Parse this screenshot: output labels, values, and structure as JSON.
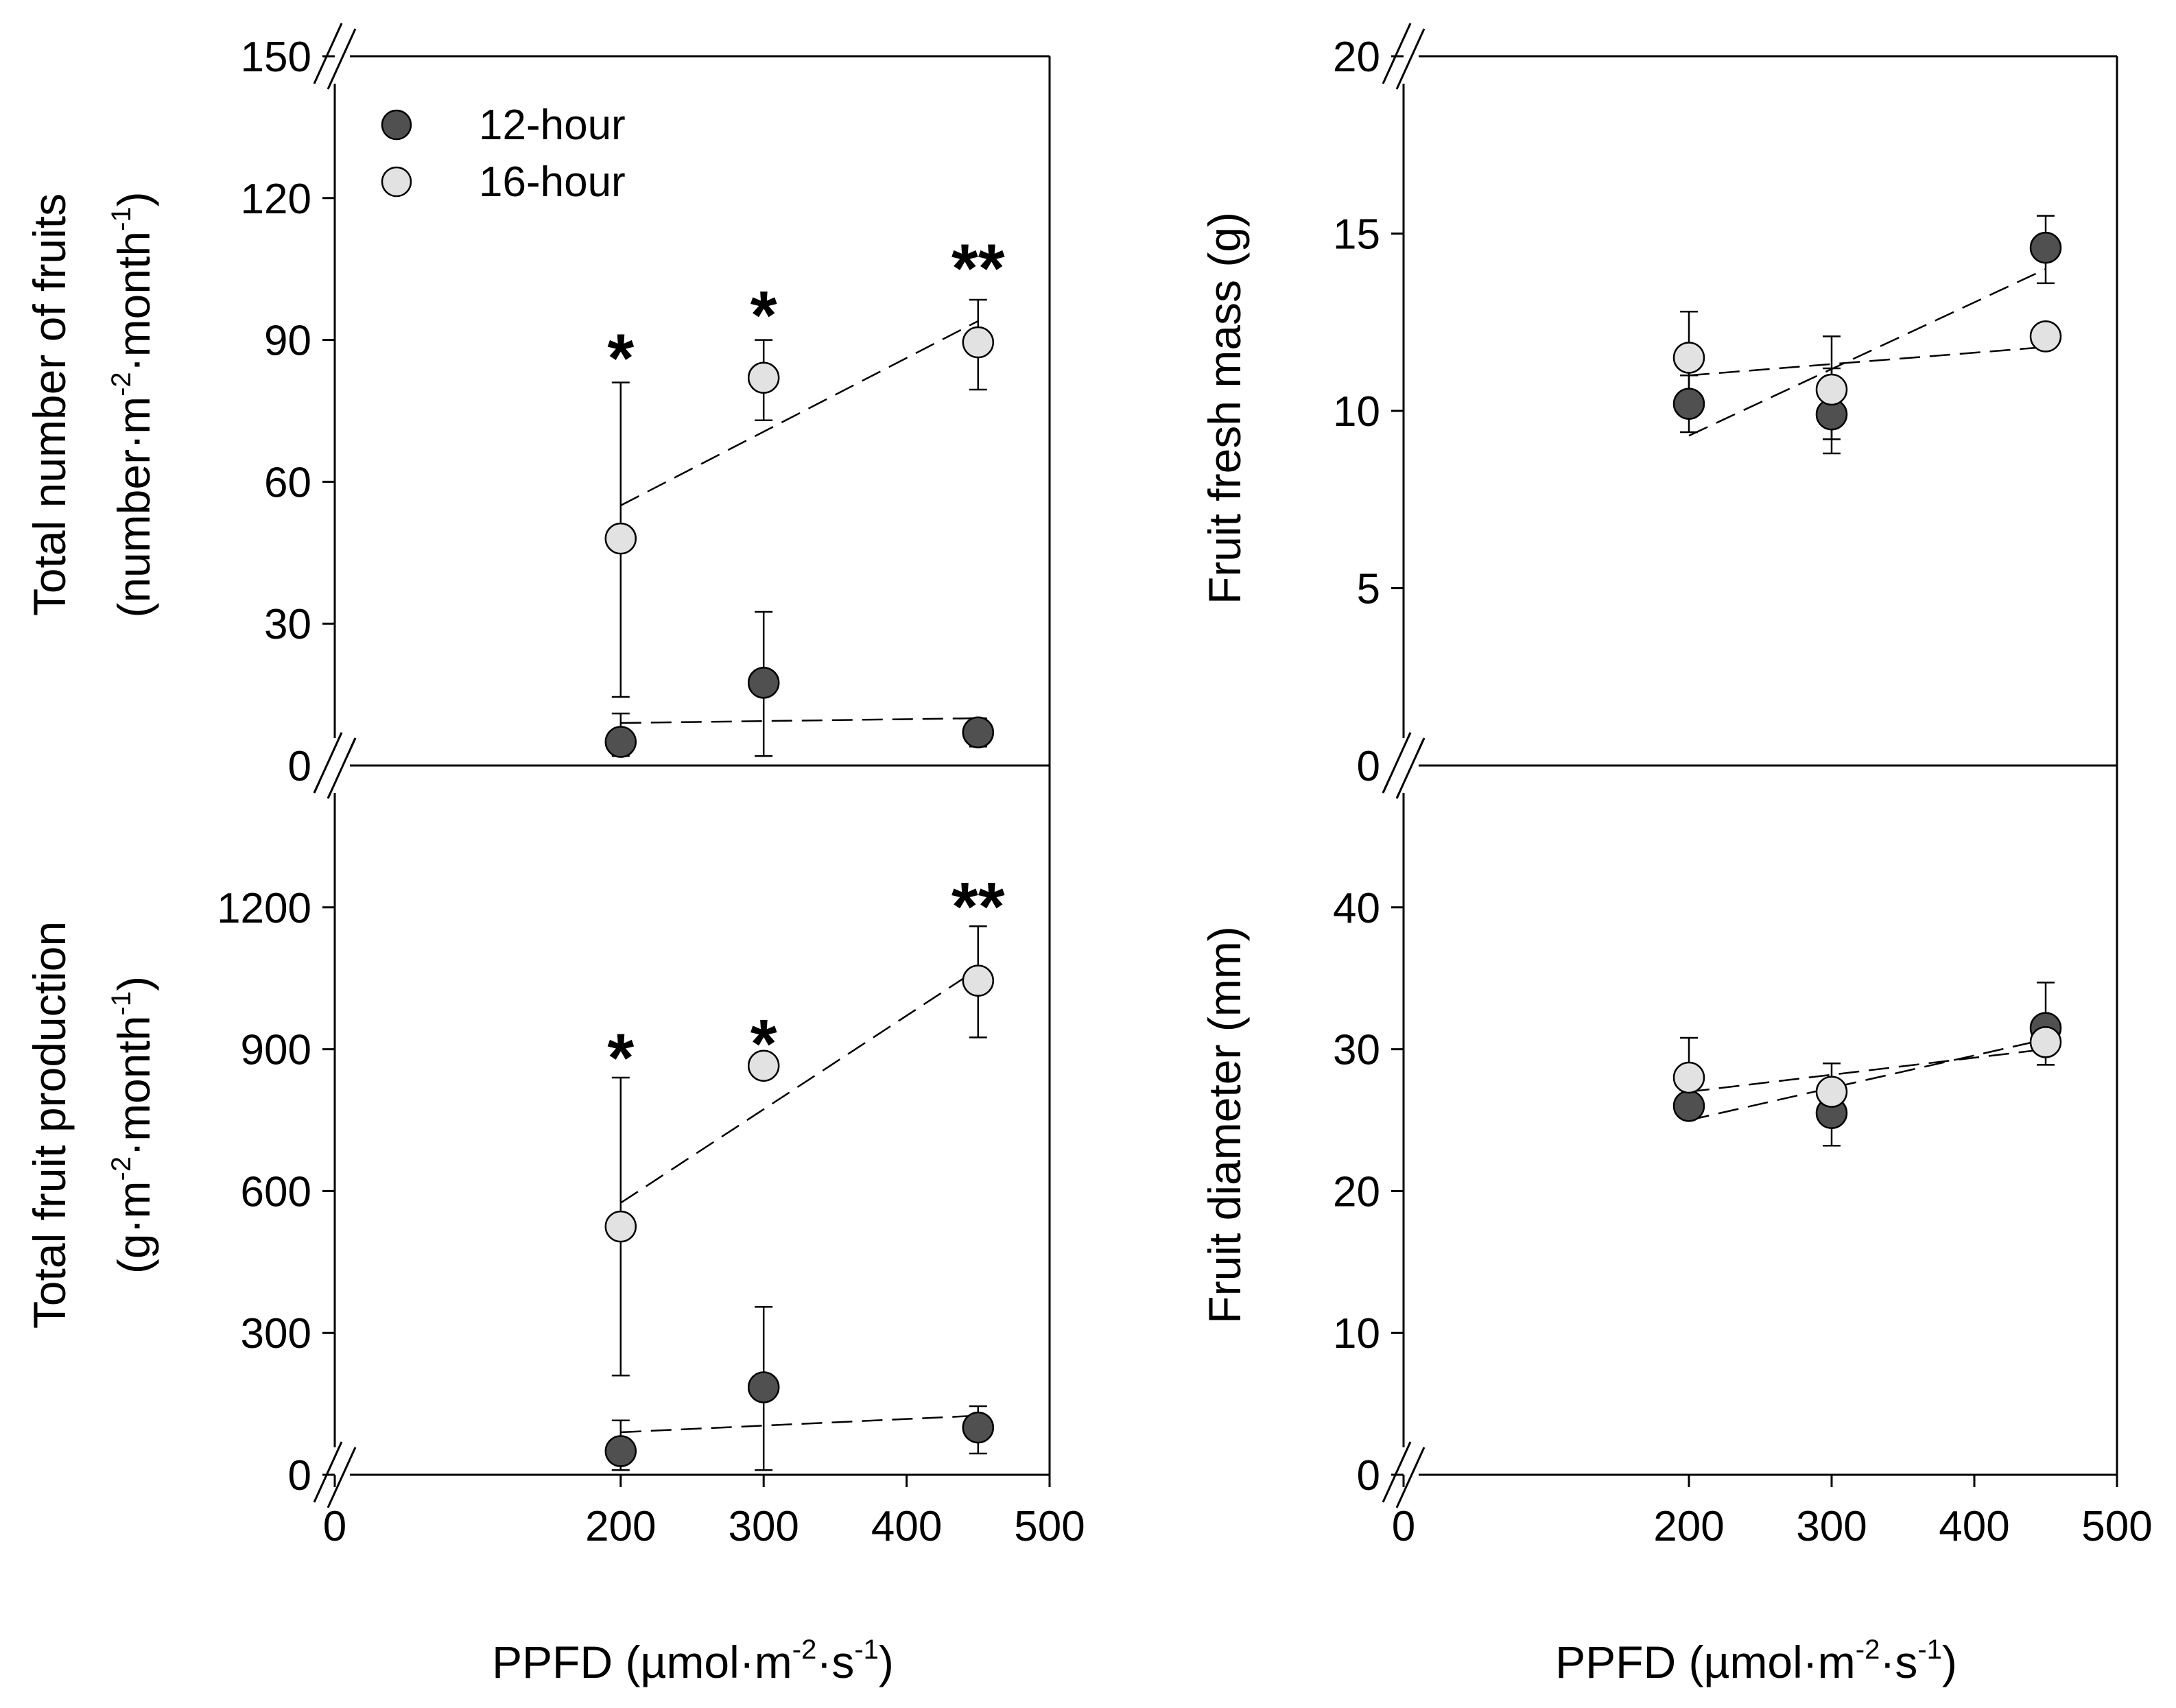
{
  "figure": {
    "x_title_left": {
      "main": "PPFD (µmol·m",
      "exp1": "-2",
      "mid": "·s",
      "exp2": "-1",
      "end": ")"
    },
    "x_title_right": {
      "main": "PPFD (µmol·m",
      "exp1": "-2",
      "mid": "·s",
      "exp2": "-1",
      "end": ")"
    },
    "x_ticks": [
      "0",
      "200",
      "300",
      "400",
      "500"
    ],
    "legend": [
      {
        "label": "12-hour",
        "color": "#505050"
      },
      {
        "label": "16-hour",
        "color": "#e2e2e2"
      }
    ]
  },
  "colors": {
    "series_12h": "#505050",
    "series_16h": "#e2e2e2",
    "marker_edge": "#000000",
    "fit_line": "#000000"
  },
  "chart_data": [
    {
      "type": "scatter",
      "panel": "top-left",
      "title": "",
      "ylabel_line1": "Total number of fruits",
      "ylabel_line2": {
        "a": "(number·m",
        "e1": "-2",
        "b": "·month",
        "e2": "-1",
        "c": ")"
      },
      "xlabel": "",
      "xlim": [
        0,
        500
      ],
      "ylim": [
        0,
        150
      ],
      "y_ticks": [
        "0",
        "30",
        "60",
        "90",
        "120",
        "150"
      ],
      "axis_break": true,
      "legend_position": "top-left",
      "x": [
        200,
        300,
        450
      ],
      "series": [
        {
          "name": "12-hour",
          "values": [
            5,
            17.5,
            7
          ],
          "err_up": [
            6,
            15,
            3
          ],
          "err_down": [
            3,
            15.5,
            3
          ],
          "fit": [
            [
              200,
              9
            ],
            [
              450,
              10
            ]
          ]
        },
        {
          "name": "16-hour",
          "values": [
            48,
            82,
            89.5
          ],
          "err_up": [
            33,
            8,
            9
          ],
          "err_down": [
            33.5,
            9,
            10
          ],
          "fit": [
            [
              200,
              55
            ],
            [
              450,
              94
            ]
          ]
        }
      ],
      "annotations": [
        {
          "x": 200,
          "text": "*",
          "y": 87
        },
        {
          "x": 300,
          "text": "*",
          "y": 96
        },
        {
          "x": 450,
          "text": "**",
          "y": 106
        }
      ]
    },
    {
      "type": "scatter",
      "panel": "top-right",
      "title": "",
      "ylabel_line1": "Fruit fresh mass (g)",
      "xlabel": "",
      "xlim": [
        0,
        500
      ],
      "ylim": [
        0,
        20
      ],
      "y_ticks": [
        "0",
        "5",
        "10",
        "15",
        "20"
      ],
      "axis_break": true,
      "x": [
        200,
        300,
        450
      ],
      "series": [
        {
          "name": "12-hour",
          "values": [
            10.2,
            9.9,
            14.6
          ],
          "err_up": [
            0.8,
            1.3,
            0.9
          ],
          "err_down": [
            0.8,
            1.1,
            1.0
          ],
          "fit": [
            [
              200,
              9.3
            ],
            [
              450,
              14.0
            ]
          ]
        },
        {
          "name": "16-hour",
          "values": [
            11.5,
            10.6,
            12.1
          ],
          "err_up": [
            1.3,
            1.5,
            0.1
          ],
          "err_down": [
            1.5,
            1.4,
            0.1
          ],
          "fit": [
            [
              200,
              11.0
            ],
            [
              450,
              11.8
            ]
          ]
        }
      ],
      "annotations": []
    },
    {
      "type": "scatter",
      "panel": "bottom-left",
      "title": "",
      "ylabel_line1": "Total fruit production",
      "ylabel_line2": {
        "a": "(g·m",
        "e1": "-2",
        "b": "·month",
        "e2": "-1",
        "c": ")"
      },
      "xlabel": "PPFD (µmol·m-2·s-1)",
      "xlim": [
        0,
        500
      ],
      "ylim": [
        0,
        1500
      ],
      "y_ticks": [
        "0",
        "300",
        "600",
        "900",
        "1200"
      ],
      "axis_break": true,
      "x": [
        200,
        300,
        450
      ],
      "series": [
        {
          "name": "12-hour",
          "values": [
            50,
            185,
            100
          ],
          "err_up": [
            65,
            170,
            45
          ],
          "err_down": [
            40,
            175,
            55
          ],
          "fit": [
            [
              200,
              90
            ],
            [
              450,
              125
            ]
          ]
        },
        {
          "name": "16-hour",
          "values": [
            525,
            865,
            1045
          ],
          "err_up": [
            315,
            0,
            115
          ],
          "err_down": [
            315,
            0,
            120
          ],
          "fit": [
            [
              200,
              575
            ],
            [
              450,
              1070
            ]
          ]
        }
      ],
      "annotations": [
        {
          "x": 200,
          "text": "*",
          "y": 890
        },
        {
          "x": 300,
          "text": "*",
          "y": 920
        },
        {
          "x": 450,
          "text": "**",
          "y": 1210
        }
      ]
    },
    {
      "type": "scatter",
      "panel": "bottom-right",
      "title": "",
      "ylabel_line1": "Fruit diameter (mm)",
      "xlabel": "PPFD (µmol·m-2·s-1)",
      "xlim": [
        0,
        500
      ],
      "ylim": [
        0,
        50
      ],
      "y_ticks": [
        "0",
        "10",
        "20",
        "30",
        "40"
      ],
      "axis_break": true,
      "x": [
        200,
        300,
        450
      ],
      "series": [
        {
          "name": "12-hour",
          "values": [
            26,
            25.5,
            31.5
          ],
          "err_up": [
            0.6,
            0.7,
            3.2
          ],
          "err_down": [
            0.6,
            2.3,
            2.6
          ],
          "fit": [
            [
              200,
              25
            ],
            [
              450,
              30.7
            ]
          ]
        },
        {
          "name": "16-hour",
          "values": [
            28,
            27,
            30.5
          ],
          "err_up": [
            2.8,
            2.0,
            0.1
          ],
          "err_down": [
            2.8,
            2.2,
            0.1
          ],
          "fit": [
            [
              200,
              27
            ],
            [
              450,
              30
            ]
          ]
        }
      ],
      "annotations": []
    }
  ]
}
